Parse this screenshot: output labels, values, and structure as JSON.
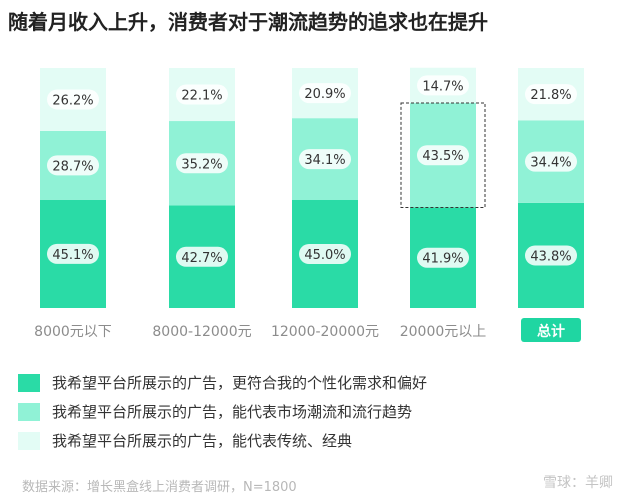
{
  "title": "随着月收入上升，消费者对于潮流趋势的追求也在提升",
  "source": "数据来源：增长黑盒线上消费者调研，N=1800",
  "watermark": "雪球：羊卿",
  "colors": {
    "dark": "#2adba6",
    "mid": "#90f2d6",
    "light": "#e3fcf5",
    "total_badge": "#1fd6a2",
    "axis_label": "#8c8c8c",
    "value_label": "#333333"
  },
  "legend": [
    {
      "label": "我希望平台所展示的广告，更符合我的个性化需求和偏好",
      "color": "#2adba6"
    },
    {
      "label": "我希望平台所展示的广告，能代表市场潮流和流行趋势",
      "color": "#90f2d6"
    },
    {
      "label": "我希望平台所展示的广告，能代表传统、经典",
      "color": "#e3fcf5"
    }
  ],
  "chart_data": {
    "type": "bar",
    "stacked": true,
    "percent_stacked": true,
    "categories": [
      "8000元以下",
      "8000-12000元",
      "12000-20000元",
      "20000元以上",
      "总计"
    ],
    "highlight_category": "总计",
    "series": [
      {
        "name": "我希望平台所展示的广告，更符合我的个性化需求和偏好",
        "values": [
          45.1,
          42.7,
          45.0,
          41.9,
          43.8
        ],
        "labels": [
          "45.1%",
          "42.7%",
          "45.0%",
          "41.9%",
          "43.8%"
        ]
      },
      {
        "name": "我希望平台所展示的广告，能代表市场潮流和流行趋势",
        "values": [
          28.7,
          35.2,
          34.1,
          43.5,
          34.4
        ],
        "labels": [
          "28.7%",
          "35.2%",
          "34.1%",
          "43.5%",
          "34.4%"
        ]
      },
      {
        "name": "我希望平台所展示的广告，能代表传统、经典",
        "values": [
          26.2,
          22.1,
          20.9,
          14.7,
          21.8
        ],
        "labels": [
          "26.2%",
          "22.1%",
          "20.9%",
          "14.7%",
          "21.8%"
        ]
      }
    ],
    "annotations": [
      {
        "type": "dashed-box",
        "category": "20000元以上",
        "series": "我希望平台所展示的广告，能代表市场潮流和流行趋势"
      }
    ],
    "ylim": [
      0,
      100
    ],
    "grid": false,
    "legend_position": "bottom-left"
  }
}
